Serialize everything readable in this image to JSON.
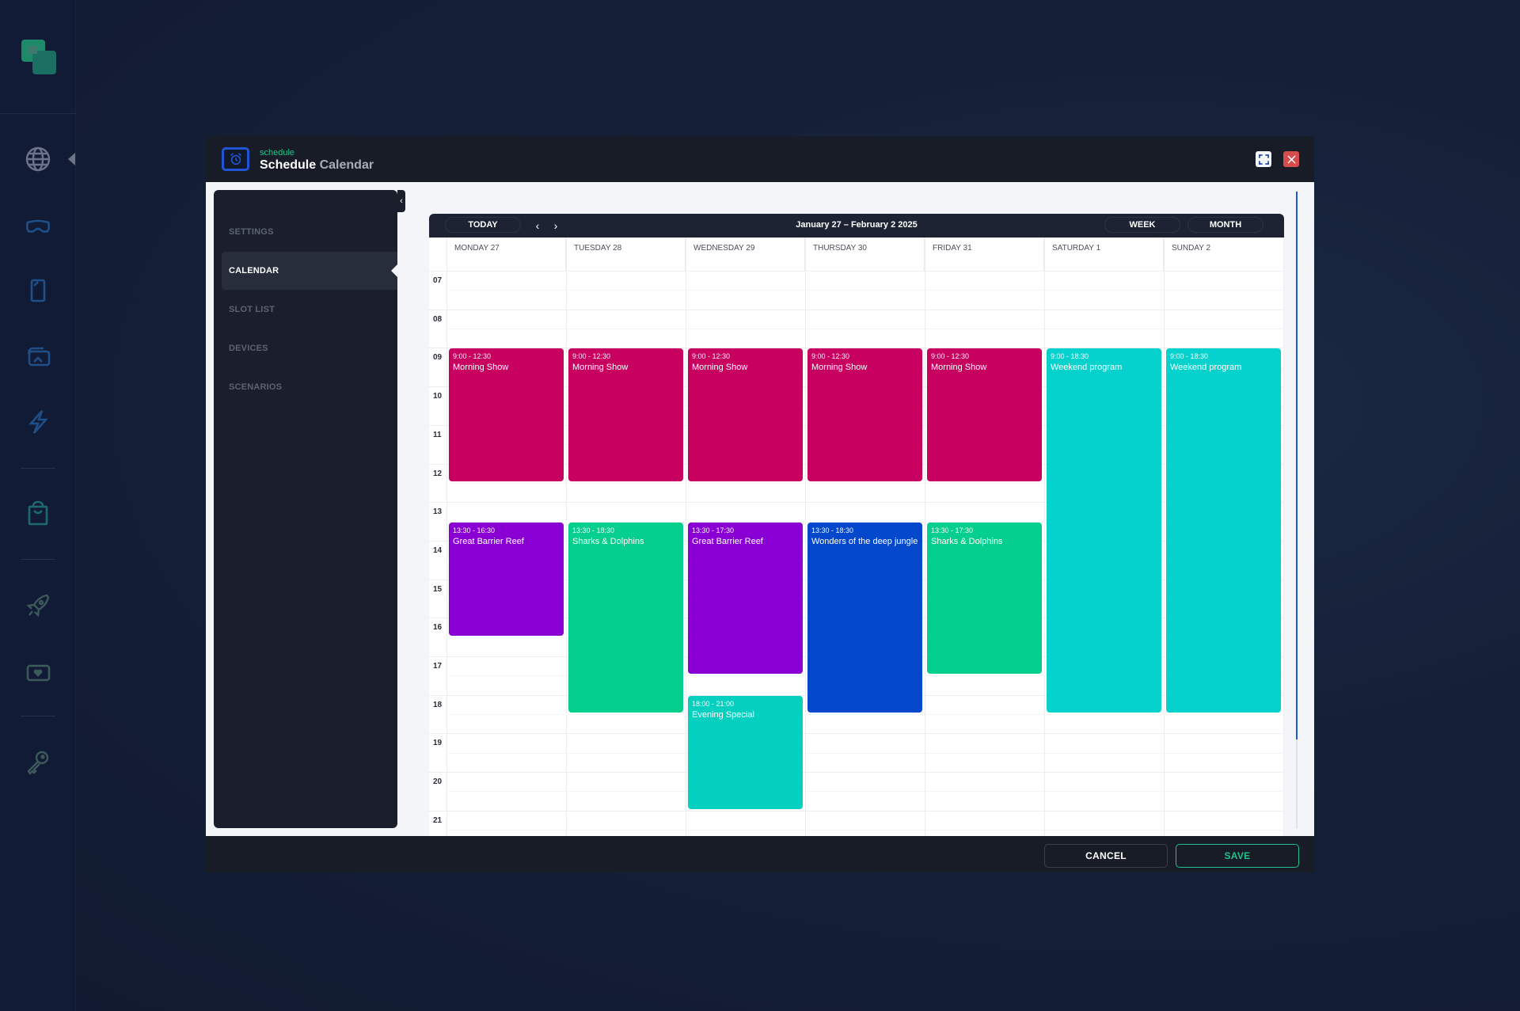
{
  "rail": {
    "items": [
      {
        "icon": "globe-icon",
        "label": "Web"
      },
      {
        "icon": "vr-headset-icon",
        "label": "VR"
      },
      {
        "icon": "mobile-device-icon",
        "label": "Mobile"
      },
      {
        "icon": "media-gallery-icon",
        "label": "Media"
      },
      {
        "icon": "lightning-icon",
        "label": "Actions"
      },
      {
        "icon": "shopping-bag-icon",
        "label": "Store"
      },
      {
        "icon": "rocket-icon",
        "label": "Launch"
      },
      {
        "icon": "heart-screen-icon",
        "label": "Favorites"
      },
      {
        "icon": "key-icon",
        "label": "Keys"
      }
    ]
  },
  "modal": {
    "subtitle": "schedule",
    "title_bold": "Schedule",
    "title_light": "Calendar",
    "fullscreen_icon": "fullscreen-icon",
    "close_icon": "close-icon"
  },
  "sidebar": {
    "collapse_label": "‹",
    "items": [
      {
        "label": "SETTINGS",
        "active": false
      },
      {
        "label": "CALENDAR",
        "active": true
      },
      {
        "label": "SLOT LIST",
        "active": false
      },
      {
        "label": "DEVICES",
        "active": false
      },
      {
        "label": "SCENARIOS",
        "active": false
      }
    ]
  },
  "calendar": {
    "today_label": "TODAY",
    "prev_label": "‹",
    "next_label": "›",
    "range_title": "January 27 – February 2 2025",
    "week_label": "WEEK",
    "month_label": "MONTH",
    "days": [
      "MONDAY 27",
      "TUESDAY 28",
      "WEDNESDAY 29",
      "THURSDAY 30",
      "FRIDAY 31",
      "SATURDAY 1",
      "SUNDAY 2"
    ],
    "hours": [
      "07",
      "08",
      "09",
      "10",
      "11",
      "12",
      "13",
      "14",
      "15",
      "16",
      "17",
      "18",
      "19",
      "20",
      "21"
    ],
    "colors": {
      "morning": "#c8005f",
      "reef": "#8a00d4",
      "sharks": "#05cf8c",
      "weekend": "#05d2cc",
      "wonders": "#0348cc",
      "evening": "#05cfbf"
    },
    "events": [
      {
        "day": 0,
        "time": "9:00 - 12:30",
        "title": "Morning Show",
        "start": 9.0,
        "end": 12.5,
        "color": "#c8005f"
      },
      {
        "day": 1,
        "time": "9:00 - 12:30",
        "title": "Morning Show",
        "start": 9.0,
        "end": 12.5,
        "color": "#c8005f"
      },
      {
        "day": 2,
        "time": "9:00 - 12:30",
        "title": "Morning Show",
        "start": 9.0,
        "end": 12.5,
        "color": "#c8005f"
      },
      {
        "day": 3,
        "time": "9:00 - 12:30",
        "title": "Morning Show",
        "start": 9.0,
        "end": 12.5,
        "color": "#c8005f"
      },
      {
        "day": 4,
        "time": "9:00 - 12:30",
        "title": "Morning Show",
        "start": 9.0,
        "end": 12.5,
        "color": "#c8005f"
      },
      {
        "day": 5,
        "time": "9:00 - 18:30",
        "title": "Weekend program",
        "start": 9.0,
        "end": 18.5,
        "color": "#05d2cc"
      },
      {
        "day": 6,
        "time": "9:00 - 18:30",
        "title": "Weekend program",
        "start": 9.0,
        "end": 18.5,
        "color": "#05d2cc"
      },
      {
        "day": 0,
        "time": "13:30 - 16:30",
        "title": "Great Barrier Reef",
        "start": 13.5,
        "end": 16.5,
        "color": "#8a00d4"
      },
      {
        "day": 1,
        "time": "13:30 - 18:30",
        "title": "Sharks & Dolphins",
        "start": 13.5,
        "end": 18.5,
        "color": "#05cf8c"
      },
      {
        "day": 2,
        "time": "13:30 - 17:30",
        "title": "Great Barrier Reef",
        "start": 13.5,
        "end": 17.5,
        "color": "#8a00d4"
      },
      {
        "day": 3,
        "time": "13:30 - 18:30",
        "title": "Wonders of the deep jungle",
        "start": 13.5,
        "end": 18.5,
        "color": "#0348cc"
      },
      {
        "day": 4,
        "time": "13:30 - 17:30",
        "title": "Sharks & Dolphins",
        "start": 13.5,
        "end": 17.5,
        "color": "#05cf8c"
      },
      {
        "day": 2,
        "time": "18:00 - 21:00",
        "title": "Evening Special",
        "start": 18.0,
        "end": 21.0,
        "color": "#05cfbf"
      }
    ]
  },
  "footer": {
    "cancel_label": "CANCEL",
    "save_label": "SAVE"
  }
}
